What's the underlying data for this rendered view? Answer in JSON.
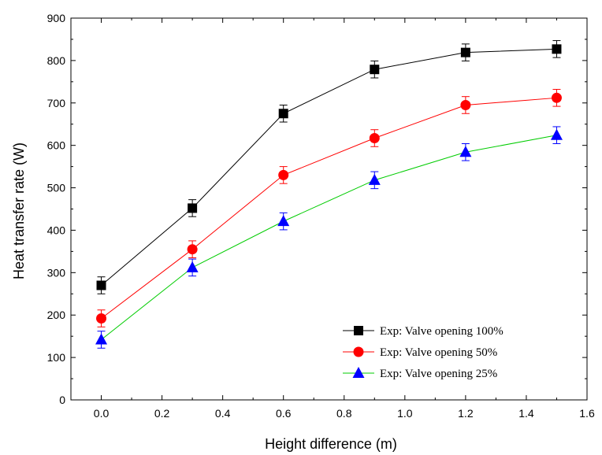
{
  "chart_data": {
    "type": "line",
    "xlabel": "Height difference (m)",
    "ylabel": "Heat transfer rate (W)",
    "xlim": [
      -0.1,
      1.6
    ],
    "ylim": [
      0,
      900
    ],
    "xticks": [
      "0.0",
      "0.2",
      "0.4",
      "0.6",
      "0.8",
      "1.0",
      "1.2",
      "1.4",
      "1.6"
    ],
    "yticks": [
      "0",
      "100",
      "200",
      "300",
      "400",
      "500",
      "600",
      "700",
      "800",
      "900"
    ],
    "grid": false,
    "legend_position": "bottom-right",
    "x": [
      0.0,
      0.3,
      0.6,
      0.9,
      1.2,
      1.5
    ],
    "series": [
      {
        "name": "Exp: Valve opening 100%",
        "color": "#000000",
        "marker": "square",
        "values": [
          270,
          452,
          675,
          779,
          819,
          827
        ],
        "error": [
          20,
          20,
          20,
          20,
          20,
          20
        ]
      },
      {
        "name": "Exp: Valve opening 50%",
        "color": "#ff0000",
        "marker": "circle",
        "values": [
          192,
          355,
          530,
          617,
          695,
          712
        ],
        "error": [
          20,
          20,
          20,
          20,
          20,
          20
        ]
      },
      {
        "name": "Exp: Valve opening 25%",
        "color": "#0000ff",
        "line_color": "#00cc00",
        "marker": "triangle",
        "values": [
          142,
          312,
          421,
          518,
          584,
          624
        ],
        "error": [
          20,
          20,
          20,
          20,
          20,
          20
        ]
      }
    ]
  }
}
